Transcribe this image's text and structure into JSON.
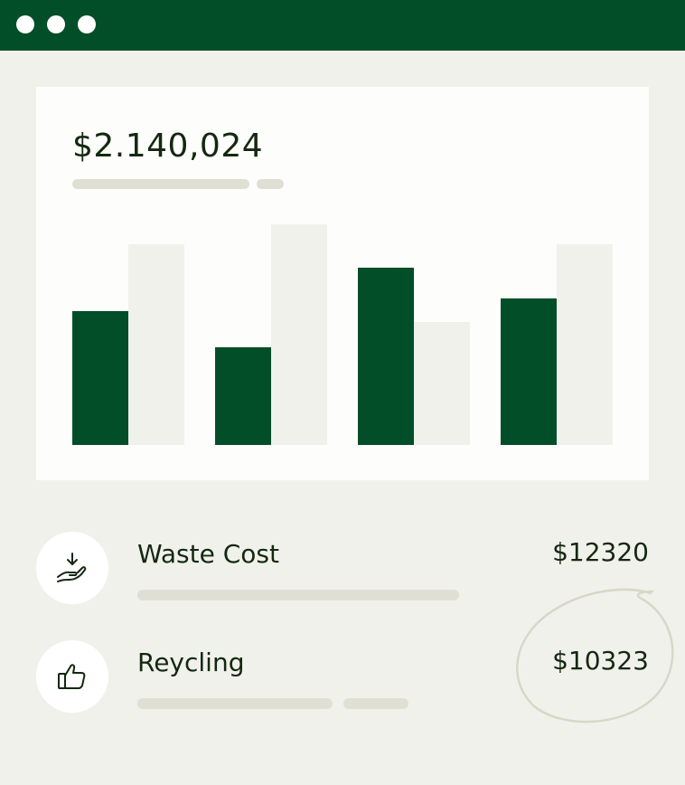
{
  "window": {
    "controls": [
      "dot",
      "dot",
      "dot"
    ]
  },
  "summary": {
    "total": "$2.140,024"
  },
  "chart_data": {
    "type": "bar",
    "categories": [
      "",
      "",
      "",
      ""
    ],
    "series": [
      {
        "values": [
          148,
          108,
          196,
          162
        ],
        "color": "#024e28"
      },
      {
        "values": [
          222,
          244,
          136,
          222
        ],
        "color": "#f1f1ec"
      }
    ],
    "ylim": [
      0,
      244
    ],
    "grid": false,
    "legend": "none"
  },
  "rows": [
    {
      "label": "Waste Cost",
      "amount": "$12320",
      "icon": "hand-download-icon"
    },
    {
      "label": "Reycling",
      "amount": "$10323",
      "icon": "thumbs-up-icon",
      "highlighted": true
    }
  ],
  "colors": {
    "brand": "#024e28",
    "text": "#14280f",
    "background": "#f1f1ec",
    "placeholder": "#dfdfd4",
    "circle": "#d7d8c5"
  }
}
